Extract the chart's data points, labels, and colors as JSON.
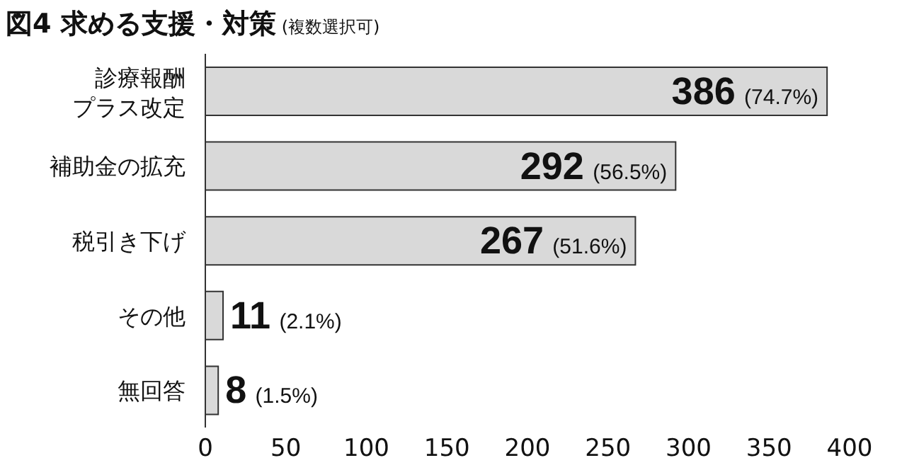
{
  "chart_data": {
    "type": "bar",
    "orientation": "horizontal",
    "title": "図4 求める支援・対策",
    "subtitle": "(複数選択可)",
    "categories": [
      "診療報酬プラス改定",
      "補助金の拡充",
      "税引き下げ",
      "その他",
      "無回答"
    ],
    "values": [
      386,
      292,
      267,
      11,
      8
    ],
    "value_labels": [
      "386 (74.7%)",
      "292 (56.5%)",
      "267 (51.6%)",
      "11 (2.1%)",
      "8 (1.5%)"
    ],
    "color": "#d9d9d9",
    "xlim": [
      0,
      400
    ],
    "xticks": [
      0,
      50,
      100,
      150,
      200,
      250,
      300,
      350,
      400
    ],
    "grid": false,
    "legend": false
  }
}
